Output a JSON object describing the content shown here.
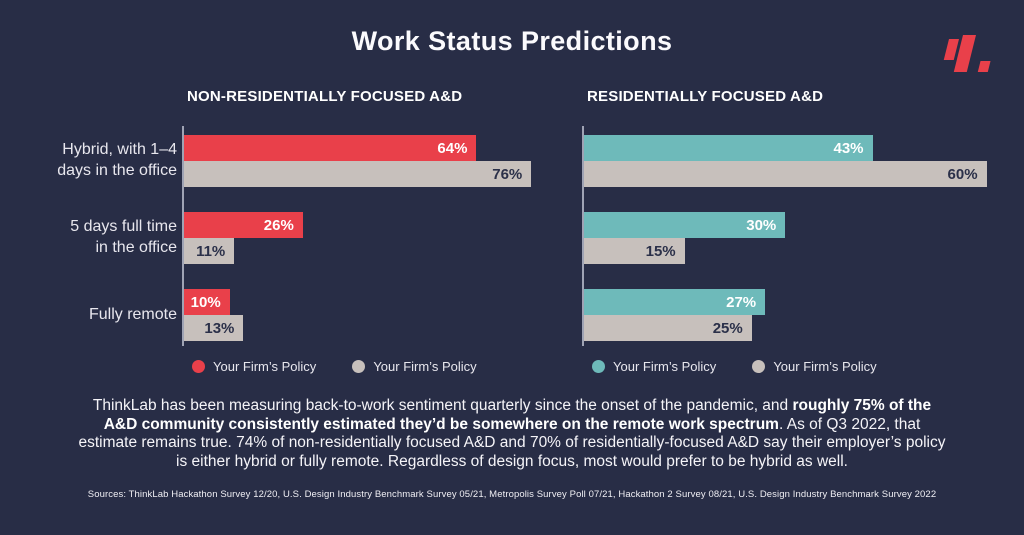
{
  "page": {
    "title": "Work Status Predictions",
    "background_color": "#282d46",
    "accent_red": "#e9404a",
    "accent_teal": "#6ebaba",
    "bar_gray": "#c7c0bc",
    "logo": "thinklab-logo-mark",
    "logo_color": "#e9404a"
  },
  "ui": {
    "category_label_lines": [
      [
        "Hybrid, with 1–4",
        "days in the office"
      ],
      [
        "5 days full time",
        "in the office"
      ],
      [
        "Fully remote"
      ]
    ]
  },
  "chart_data": [
    {
      "type": "bar",
      "orientation": "horizontal",
      "title": "NON-RESIDENTIALLY FOCUSED A&D",
      "categories": [
        "Hybrid, with 1–4 days in the office",
        "5 days full time in the office",
        "Fully remote"
      ],
      "series": [
        {
          "name": "Your Firm’s Policy",
          "color": "#e9404a",
          "values": [
            64,
            26,
            10
          ]
        },
        {
          "name": "Your Firm’s Policy",
          "color": "#c7c0bc",
          "values": [
            76,
            11,
            13
          ]
        }
      ],
      "value_suffix": "%",
      "xlim": [
        0,
        79
      ],
      "grid": false,
      "legend_position": "bottom"
    },
    {
      "type": "bar",
      "orientation": "horizontal",
      "title": "RESIDENTIALLY FOCUSED A&D",
      "categories": [
        "Hybrid, with 1–4 days in the office",
        "5 days full time in the office",
        "Fully remote"
      ],
      "series": [
        {
          "name": "Your Firm’s Policy",
          "color": "#6ebaba",
          "values": [
            43,
            30,
            27
          ]
        },
        {
          "name": "Your Firm’s Policy",
          "color": "#c7c0bc",
          "values": [
            60,
            15,
            25
          ]
        }
      ],
      "value_suffix": "%",
      "xlim": [
        0,
        62
      ],
      "grid": false,
      "legend_position": "bottom"
    }
  ],
  "summary": {
    "part1": "ThinkLab has been measuring back-to-work sentiment quarterly since the onset of the pandemic, and ",
    "bold": "roughly 75% of the A&D community consistently estimated they’d be somewhere on the remote work spectrum",
    "part2": ". As of Q3 2022, that estimate remains true. 74% of non-residentially focused A&D and 70% of residentially-focused A&D say their employer’s policy is either hybrid or fully remote. Regardless of design focus, most would prefer to be hybrid as well."
  },
  "sources": "Sources: ThinkLab Hackathon Survey 12/20, U.S. Design Industry Benchmark Survey 05/21, Metropolis Survey Poll 07/21, Hackathon 2 Survey 08/21, U.S. Design Industry Benchmark Survey 2022"
}
